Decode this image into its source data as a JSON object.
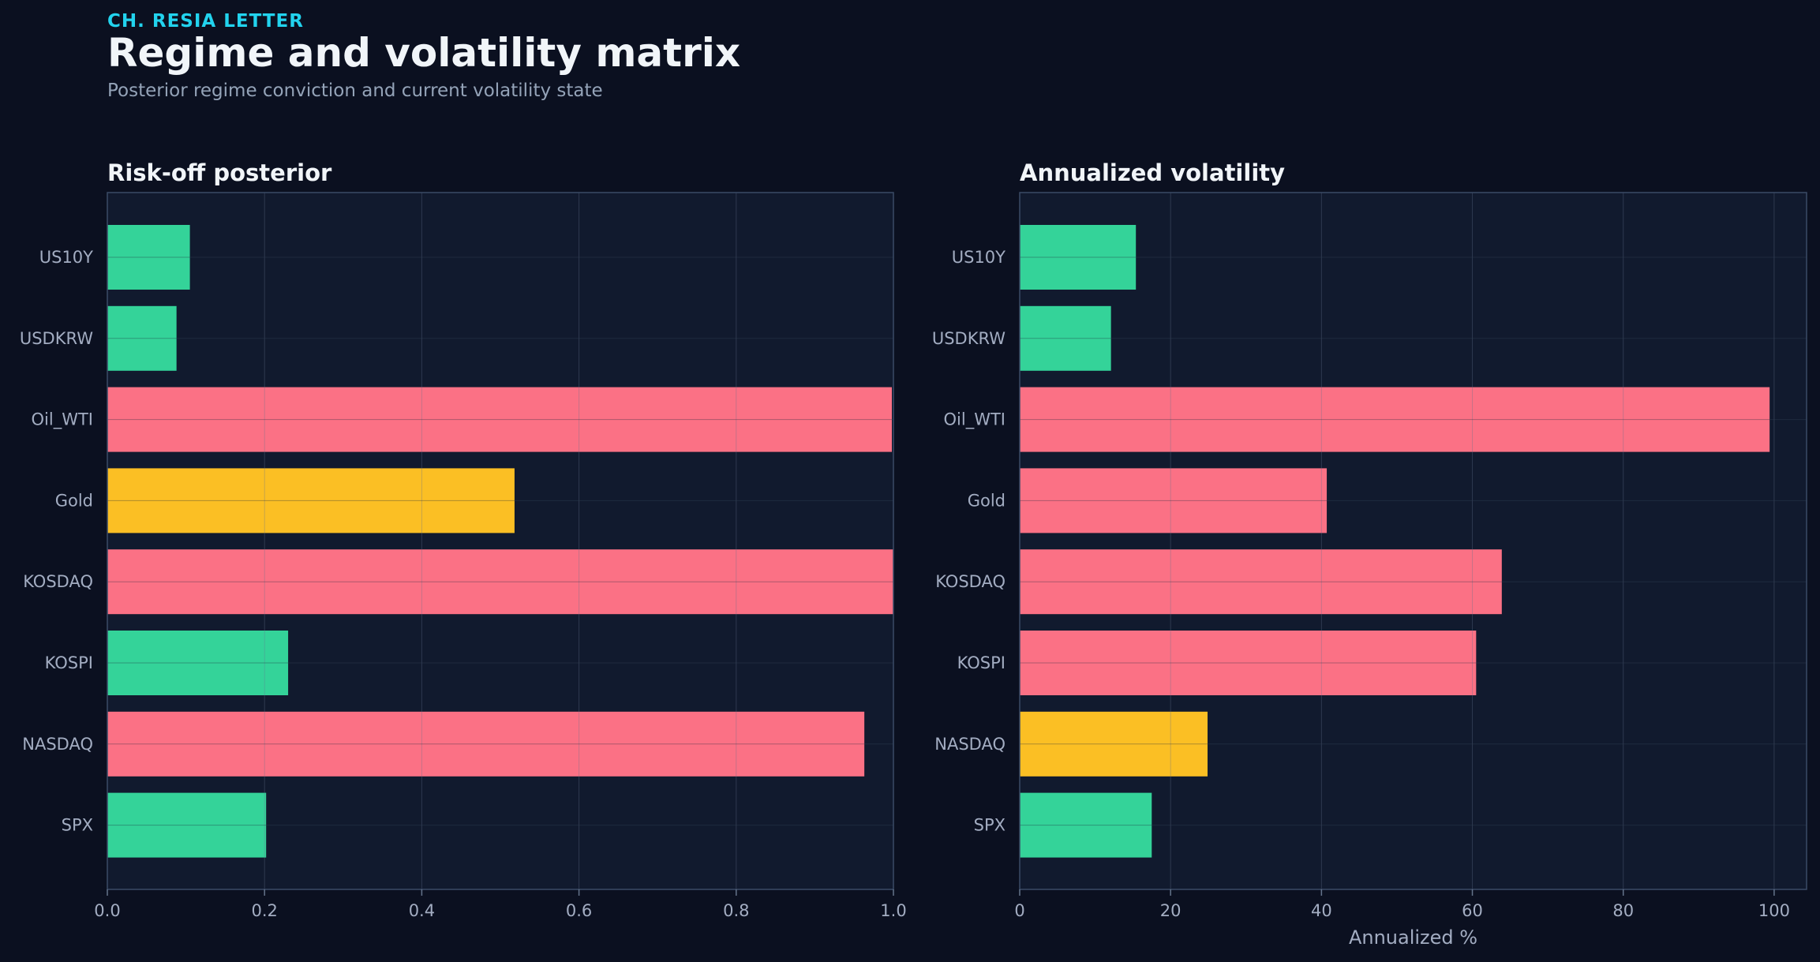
{
  "header": {
    "kicker": "CH. RESIA LETTER",
    "title": "Regime and volatility matrix",
    "subtitle": "Posterior regime conviction and current volatility state"
  },
  "colors": {
    "background": "#0b1020",
    "panel": "#111a2e",
    "calm": "#34d399",
    "neutral": "#fbbf24",
    "risk_off": "#fb7185",
    "accent": "#22d3ee"
  },
  "chart_data": [
    {
      "type": "bar",
      "orientation": "horizontal",
      "title": "Risk-off posterior",
      "xlabel": "",
      "ylabel": "",
      "xlim": [
        0,
        1
      ],
      "xticks": [
        "0.0",
        "0.2",
        "0.4",
        "0.6",
        "0.8",
        "1.0"
      ],
      "tick_values": [
        0,
        0.2,
        0.4,
        0.6,
        0.8,
        1.0
      ],
      "grid": true,
      "categories": [
        "US10Y",
        "USDKRW",
        "Oil_WTI",
        "Gold",
        "KOSDAQ",
        "KOSPI",
        "NASDAQ",
        "SPX"
      ],
      "values": [
        0.105,
        0.088,
        0.998,
        0.518,
        1.0,
        0.23,
        0.963,
        0.202
      ],
      "bar_colors": [
        "#34d399",
        "#34d399",
        "#fb7185",
        "#fbbf24",
        "#fb7185",
        "#34d399",
        "#fb7185",
        "#34d399"
      ]
    },
    {
      "type": "bar",
      "orientation": "horizontal",
      "title": "Annualized volatility",
      "xlabel": "Annualized %",
      "ylabel": "",
      "xlim": [
        0,
        104.3
      ],
      "xticks": [
        "0",
        "20",
        "40",
        "60",
        "80",
        "100"
      ],
      "tick_values": [
        0,
        20,
        40,
        60,
        80,
        100
      ],
      "grid": true,
      "categories": [
        "US10Y",
        "USDKRW",
        "Oil_WTI",
        "Gold",
        "KOSDAQ",
        "KOSPI",
        "NASDAQ",
        "SPX"
      ],
      "values": [
        15.4,
        12.1,
        99.4,
        40.7,
        63.9,
        60.5,
        24.9,
        17.5
      ],
      "bar_colors": [
        "#34d399",
        "#34d399",
        "#fb7185",
        "#fb7185",
        "#fb7185",
        "#fb7185",
        "#fbbf24",
        "#34d399"
      ]
    }
  ]
}
